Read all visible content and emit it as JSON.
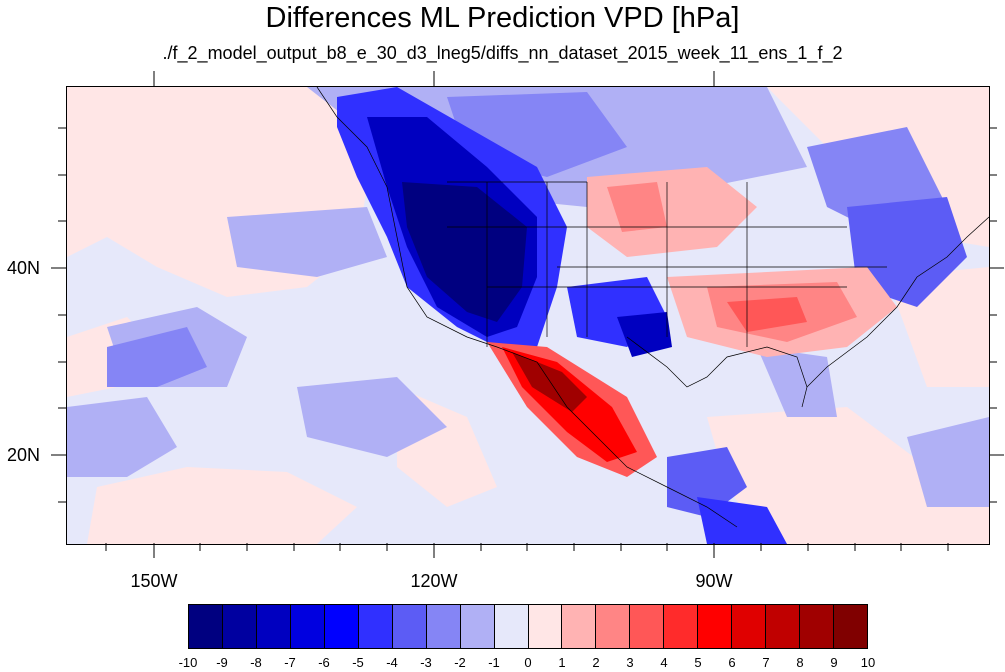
{
  "title": "Differences ML Prediction VPD [hPa]",
  "subtitle": "./f_2_model_output_b8_e_30_d3_lneg5/diffs_nn_dataset_2015_week_11_ens_1_f_2",
  "map": {
    "lon_labels": [
      "150W",
      "120W",
      "90W"
    ],
    "lat_labels": [
      "40N",
      "20N"
    ],
    "lon_range": [
      -159,
      -61
    ],
    "lat_range": [
      11,
      60
    ]
  },
  "colorbar": {
    "labels": [
      "-10",
      "-9",
      "-8",
      "-7",
      "-6",
      "-5",
      "-4",
      "-3",
      "-2",
      "-1",
      "0",
      "1",
      "2",
      "3",
      "4",
      "5",
      "6",
      "7",
      "8",
      "9",
      "10"
    ],
    "colors": [
      "#000080",
      "#0000a0",
      "#0000c0",
      "#0000e0",
      "#0000ff",
      "#3030ff",
      "#5c5cf5",
      "#8585f5",
      "#b0b0f5",
      "#e6e8fa",
      "#ffe6e6",
      "#ffb3b3",
      "#ff8585",
      "#ff5757",
      "#ff2b2b",
      "#ff0000",
      "#e00000",
      "#c00000",
      "#a00000",
      "#800000"
    ]
  },
  "colors": {
    "background": "#e6e8fa",
    "strong_negative": "#0000a0",
    "strong_positive": "#e00000"
  }
}
